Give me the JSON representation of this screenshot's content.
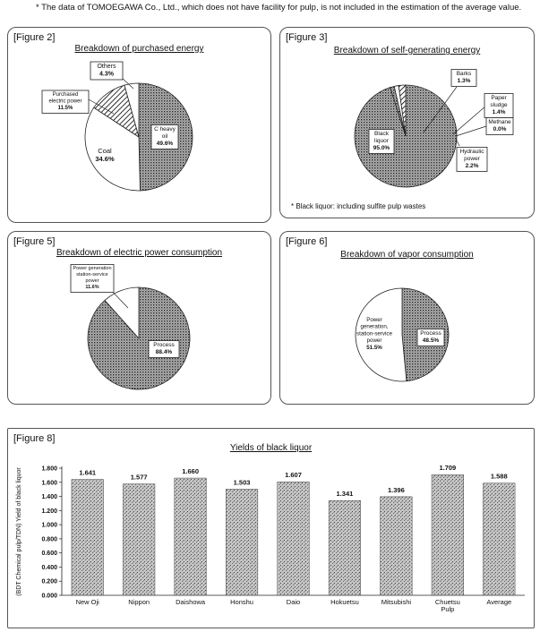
{
  "note": "* The data of TOMOEGAWA Co., Ltd., which does not have facility for pulp, is not included in the estimation of the average value.",
  "chart_data": [
    {
      "id": "fig2",
      "type": "pie",
      "figure_label": "[Figure 2]",
      "title": "Breakdown of purchased energy",
      "slices": [
        {
          "name": "C heavy oil",
          "value": 49.6,
          "label": "49.6%"
        },
        {
          "name": "Coal",
          "value": 34.6,
          "label": "34.6%"
        },
        {
          "name": "Purchased electric power",
          "value": 11.5,
          "label": "11.5%"
        },
        {
          "name": "Others",
          "value": 4.3,
          "label": "4.3%"
        }
      ]
    },
    {
      "id": "fig3",
      "type": "pie",
      "figure_label": "[Figure 3]",
      "title": "Breakdown of self-generating energy",
      "footnote": "* Black liquor: including sulfite pulp wastes",
      "slices": [
        {
          "name": "Black liquor",
          "value": 95.0,
          "label": "95.0%"
        },
        {
          "name": "Barks",
          "value": 1.3,
          "label": "1.3%"
        },
        {
          "name": "Paper sludge",
          "value": 1.4,
          "label": "1.4%"
        },
        {
          "name": "Methane",
          "value": 0.0,
          "label": "0.0%"
        },
        {
          "name": "Hydraulic power",
          "value": 2.2,
          "label": "2.2%"
        }
      ]
    },
    {
      "id": "fig5",
      "type": "pie",
      "figure_label": "[Figure 5]",
      "title": "Breakdown of electric power consumption",
      "slices": [
        {
          "name": "Process",
          "value": 88.4,
          "label": "88.4%"
        },
        {
          "name": "Power generation station-service power",
          "value": 11.6,
          "label": "11.6%"
        }
      ]
    },
    {
      "id": "fig6",
      "type": "pie",
      "figure_label": "[Figure 6]",
      "title": "Breakdown of vapor consumption",
      "slices": [
        {
          "name": "Process",
          "value": 48.5,
          "label": "48.5%"
        },
        {
          "name": "Power generation, station-service power",
          "value": 51.5,
          "label": "51.5%"
        }
      ]
    },
    {
      "id": "fig8",
      "type": "bar",
      "figure_label": "[Figure 8]",
      "title": "Yields of black liquor",
      "ylabel": "(BDT Chemical pulp/TDN) Yield of black liquor",
      "ylim": [
        0,
        1.8
      ],
      "yticks": [
        "0.000",
        "0.200",
        "0.400",
        "0.600",
        "0.800",
        "1.000",
        "1.200",
        "1.400",
        "1.600",
        "1.800"
      ],
      "categories": [
        "New Oji",
        "Nippon",
        "Daishowa",
        "Honshu",
        "Daio",
        "Hokuetsu",
        "Mitsubishi",
        "Chuetsu Pulp",
        "Average"
      ],
      "values": [
        1.641,
        1.577,
        1.66,
        1.503,
        1.607,
        1.341,
        1.396,
        1.709,
        1.588
      ],
      "value_labels": [
        "1.641",
        "1.577",
        "1.660",
        "1.503",
        "1.607",
        "1.341",
        "1.396",
        "1.709",
        "1.588"
      ]
    }
  ]
}
